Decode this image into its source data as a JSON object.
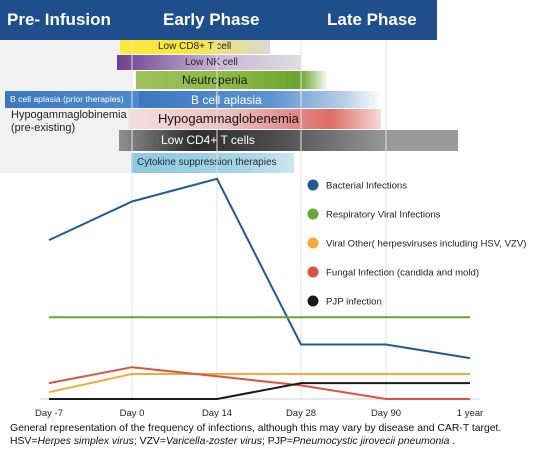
{
  "phases": {
    "pre_infusion": "Pre- Infusion",
    "early": "Early Phase",
    "late": "Late Phase"
  },
  "deficits": {
    "low_cd8": "Low CD8+ T cell",
    "low_nk": "Low NK cell",
    "neutropenia": "Neutropenia",
    "b_cell_prior": "B cell aplasia (prior therapies)",
    "b_cell": "B cell aplasia",
    "hypogamma_pre_line1": "Hypogammaglobinemia",
    "hypogamma_pre_line2": "(pre-existing)",
    "hypogamma": "Hypogammaglobenemia",
    "low_cd4": "Low CD4+ T cells",
    "cytokine": "Cytokine suppression therapies"
  },
  "chart_data": {
    "type": "line",
    "categories": [
      "Day -7",
      "Day 0",
      "Day 14",
      "Day 28",
      "Day 90",
      "1 year"
    ],
    "ylim": [
      0,
      100
    ],
    "grid": "vertical",
    "legend_position": "right",
    "series": [
      {
        "name": "Bacterial Infections",
        "color": "#1f5a96",
        "values": [
          70,
          87,
          97,
          24,
          24,
          18
        ]
      },
      {
        "name": "Respiratory Viral Infections",
        "color": "#6aa52e",
        "values": [
          36,
          36,
          36,
          36,
          36,
          36
        ]
      },
      {
        "name": "Viral Other( herpesviruses including HSV, VZV)",
        "color": "#f4a93b",
        "values": [
          3,
          11,
          11,
          11,
          11,
          11
        ]
      },
      {
        "name": "Fungal Infection (candida and mold)",
        "color": "#e0523a",
        "values": [
          7,
          14,
          10,
          6,
          0,
          0
        ]
      },
      {
        "name": "PJP infection",
        "color": "#1a1a1a",
        "values": [
          0,
          0,
          0,
          7,
          7,
          7
        ]
      }
    ]
  },
  "footnote": {
    "line1": "General representation of the frequency of infections, although this may vary by disease and CAR-T target.",
    "hsv_abbr": "HSV=",
    "hsv_full": "Herpes simplex virus",
    "vzv_abbr": "; VZV=",
    "vzv_full": "Varicella-zoster virus",
    "pjp_abbr": "; PJP=",
    "pjp_full": "Pneumocystic jirovecii pneumonia",
    "end": " ."
  }
}
